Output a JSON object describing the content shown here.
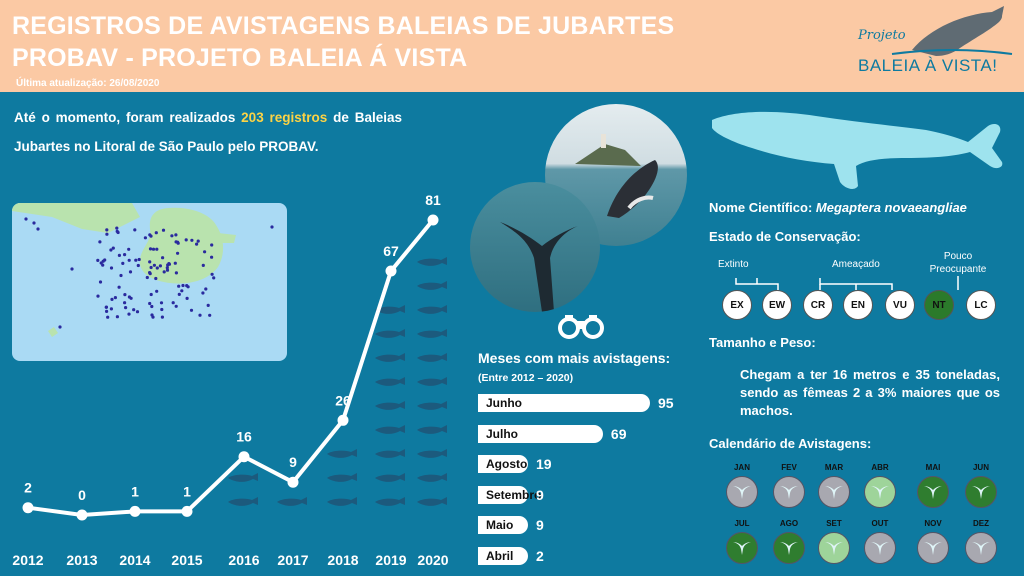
{
  "header": {
    "title_line1": "REGISTROS DE AVISTAGENS BALEIAS DE JUBARTES",
    "title_line2": "PROBAV - PROJETO BALEIA Á VISTA",
    "updated": "Última atualização: 26/08/2020",
    "logo_top": "Projeto",
    "logo_main": "BALEIA À VISTA!"
  },
  "intro": {
    "part1": "Até o momento, foram realizados ",
    "highlight": "203 registros",
    "part2": " de Baleias Jubartes no Litoral de São Paulo pelo PROBAV."
  },
  "chart_data": [
    {
      "type": "line",
      "x": [
        "2012",
        "2013",
        "2014",
        "2015",
        "2016",
        "2017",
        "2018",
        "2019",
        "2020"
      ],
      "values": [
        2,
        0,
        1,
        1,
        16,
        9,
        26,
        67,
        81
      ]
    },
    {
      "type": "bar",
      "title": "Meses com mais avistagens:",
      "subtitle": "(Entre 2012 – 2020)",
      "categories": [
        "Junho",
        "Julho",
        "Agosto",
        "Setembro",
        "Maio",
        "Abril"
      ],
      "values": [
        95,
        69,
        19,
        9,
        9,
        2
      ]
    }
  ],
  "info": {
    "sci_label": "Nome Científico: ",
    "sci_name": "Megaptera novaeangliae",
    "cons_label": "Estado de Conservação:",
    "cons_extinct": "Extinto",
    "cons_threatened": "Ameaçado",
    "cons_concern": "Pouco Preocupante",
    "cons_codes": [
      "EX",
      "EW",
      "CR",
      "EN",
      "VU",
      "NT",
      "LC"
    ],
    "cons_active": "NT",
    "size_label": "Tamanho e Peso:",
    "size_text": "Chegam a ter 16 metros e 35 toneladas, sendo as fêmeas 2 a 3% maiores que os machos.",
    "calendar_label": "Calendário de Avistagens:"
  },
  "calendar": [
    {
      "month": "JAN",
      "color": "#a8a8b0"
    },
    {
      "month": "FEV",
      "color": "#a8a8b0"
    },
    {
      "month": "MAR",
      "color": "#a8a8b0"
    },
    {
      "month": "ABR",
      "color": "#9ed49a"
    },
    {
      "month": "MAI",
      "color": "#2f7d2f"
    },
    {
      "month": "JUN",
      "color": "#2f7d2f"
    },
    {
      "month": "JUL",
      "color": "#2f7d2f"
    },
    {
      "month": "AGO",
      "color": "#2f7d2f"
    },
    {
      "month": "SET",
      "color": "#9ed49a"
    },
    {
      "month": "OUT",
      "color": "#a8a8b0"
    },
    {
      "month": "NOV",
      "color": "#a8a8b0"
    },
    {
      "month": "DEZ",
      "color": "#a8a8b0"
    }
  ],
  "colors": {
    "background": "#0e7aa0",
    "header": "#fbc9a4",
    "highlight": "#fcd345",
    "whale_icon": "#1c5a7d",
    "whale_silhouette": "#9ee3ee",
    "map_land": "#b9e3ae",
    "map_water": "#aadaf4",
    "map_dot": "#2a2a9e"
  }
}
